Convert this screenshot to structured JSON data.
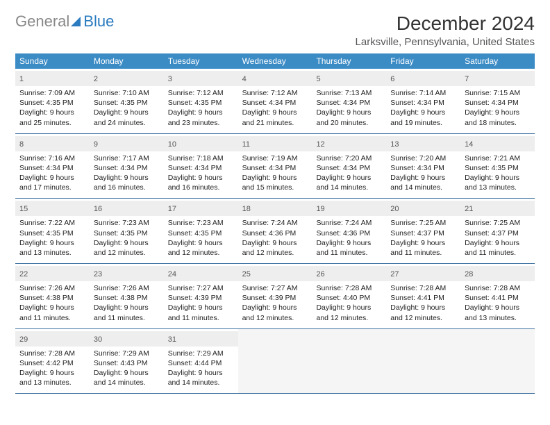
{
  "brand": {
    "part1": "General",
    "part2": "Blue"
  },
  "title": "December 2024",
  "location": "Larksville, Pennsylvania, United States",
  "day_headers": [
    "Sunday",
    "Monday",
    "Tuesday",
    "Wednesday",
    "Thursday",
    "Friday",
    "Saturday"
  ],
  "header_bg": "#3b8bc5",
  "header_text_color": "#ffffff",
  "daynum_bg": "#eeeeee",
  "rule_color": "#3b6fa0",
  "text_color": "#222222",
  "font_size_body": 10.5,
  "weeks": [
    [
      {
        "n": "1",
        "sr": "7:09 AM",
        "ss": "4:35 PM",
        "dl": "9 hours and 25 minutes."
      },
      {
        "n": "2",
        "sr": "7:10 AM",
        "ss": "4:35 PM",
        "dl": "9 hours and 24 minutes."
      },
      {
        "n": "3",
        "sr": "7:12 AM",
        "ss": "4:35 PM",
        "dl": "9 hours and 23 minutes."
      },
      {
        "n": "4",
        "sr": "7:12 AM",
        "ss": "4:34 PM",
        "dl": "9 hours and 21 minutes."
      },
      {
        "n": "5",
        "sr": "7:13 AM",
        "ss": "4:34 PM",
        "dl": "9 hours and 20 minutes."
      },
      {
        "n": "6",
        "sr": "7:14 AM",
        "ss": "4:34 PM",
        "dl": "9 hours and 19 minutes."
      },
      {
        "n": "7",
        "sr": "7:15 AM",
        "ss": "4:34 PM",
        "dl": "9 hours and 18 minutes."
      }
    ],
    [
      {
        "n": "8",
        "sr": "7:16 AM",
        "ss": "4:34 PM",
        "dl": "9 hours and 17 minutes."
      },
      {
        "n": "9",
        "sr": "7:17 AM",
        "ss": "4:34 PM",
        "dl": "9 hours and 16 minutes."
      },
      {
        "n": "10",
        "sr": "7:18 AM",
        "ss": "4:34 PM",
        "dl": "9 hours and 16 minutes."
      },
      {
        "n": "11",
        "sr": "7:19 AM",
        "ss": "4:34 PM",
        "dl": "9 hours and 15 minutes."
      },
      {
        "n": "12",
        "sr": "7:20 AM",
        "ss": "4:34 PM",
        "dl": "9 hours and 14 minutes."
      },
      {
        "n": "13",
        "sr": "7:20 AM",
        "ss": "4:34 PM",
        "dl": "9 hours and 14 minutes."
      },
      {
        "n": "14",
        "sr": "7:21 AM",
        "ss": "4:35 PM",
        "dl": "9 hours and 13 minutes."
      }
    ],
    [
      {
        "n": "15",
        "sr": "7:22 AM",
        "ss": "4:35 PM",
        "dl": "9 hours and 13 minutes."
      },
      {
        "n": "16",
        "sr": "7:23 AM",
        "ss": "4:35 PM",
        "dl": "9 hours and 12 minutes."
      },
      {
        "n": "17",
        "sr": "7:23 AM",
        "ss": "4:35 PM",
        "dl": "9 hours and 12 minutes."
      },
      {
        "n": "18",
        "sr": "7:24 AM",
        "ss": "4:36 PM",
        "dl": "9 hours and 12 minutes."
      },
      {
        "n": "19",
        "sr": "7:24 AM",
        "ss": "4:36 PM",
        "dl": "9 hours and 11 minutes."
      },
      {
        "n": "20",
        "sr": "7:25 AM",
        "ss": "4:37 PM",
        "dl": "9 hours and 11 minutes."
      },
      {
        "n": "21",
        "sr": "7:25 AM",
        "ss": "4:37 PM",
        "dl": "9 hours and 11 minutes."
      }
    ],
    [
      {
        "n": "22",
        "sr": "7:26 AM",
        "ss": "4:38 PM",
        "dl": "9 hours and 11 minutes."
      },
      {
        "n": "23",
        "sr": "7:26 AM",
        "ss": "4:38 PM",
        "dl": "9 hours and 11 minutes."
      },
      {
        "n": "24",
        "sr": "7:27 AM",
        "ss": "4:39 PM",
        "dl": "9 hours and 11 minutes."
      },
      {
        "n": "25",
        "sr": "7:27 AM",
        "ss": "4:39 PM",
        "dl": "9 hours and 12 minutes."
      },
      {
        "n": "26",
        "sr": "7:28 AM",
        "ss": "4:40 PM",
        "dl": "9 hours and 12 minutes."
      },
      {
        "n": "27",
        "sr": "7:28 AM",
        "ss": "4:41 PM",
        "dl": "9 hours and 12 minutes."
      },
      {
        "n": "28",
        "sr": "7:28 AM",
        "ss": "4:41 PM",
        "dl": "9 hours and 13 minutes."
      }
    ],
    [
      {
        "n": "29",
        "sr": "7:28 AM",
        "ss": "4:42 PM",
        "dl": "9 hours and 13 minutes."
      },
      {
        "n": "30",
        "sr": "7:29 AM",
        "ss": "4:43 PM",
        "dl": "9 hours and 14 minutes."
      },
      {
        "n": "31",
        "sr": "7:29 AM",
        "ss": "4:44 PM",
        "dl": "9 hours and 14 minutes."
      },
      null,
      null,
      null,
      null
    ]
  ],
  "labels": {
    "sunrise": "Sunrise:",
    "sunset": "Sunset:",
    "daylight": "Daylight:"
  }
}
